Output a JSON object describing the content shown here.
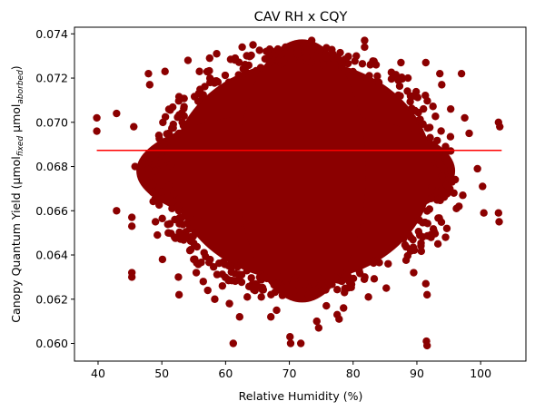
{
  "chart_data": {
    "type": "scatter",
    "title": "CAV RH x CQY",
    "xlabel": "Relative Humidity (%)",
    "ylabel": {
      "base": "Canopy Quantum Yield (μmol",
      "sub1": "fixed",
      "mid": " μmol",
      "sub2": "aborbed",
      "end": ")"
    },
    "xlim": [
      36.3,
      107.1
    ],
    "ylim": [
      0.0592,
      0.0743
    ],
    "xticks": [
      40,
      50,
      60,
      70,
      80,
      90,
      100
    ],
    "yticks": [
      0.06,
      0.062,
      0.064,
      0.066,
      0.068,
      0.07,
      0.072,
      0.074
    ],
    "ytick_labels": [
      "0.060",
      "0.062",
      "0.064",
      "0.066",
      "0.068",
      "0.070",
      "0.072",
      "0.074"
    ],
    "grid": false,
    "legend": "none",
    "series": [
      {
        "kind": "points",
        "color": "#8b0000",
        "points": [
          [
            39.8,
            0.0702
          ],
          [
            39.8,
            0.0696
          ],
          [
            42.9,
            0.0704
          ],
          [
            42.9,
            0.066
          ],
          [
            45.3,
            0.0632
          ],
          [
            45.3,
            0.063
          ],
          [
            45.3,
            0.0657
          ],
          [
            45.3,
            0.0653
          ],
          [
            45.6,
            0.0698
          ],
          [
            45.8,
            0.068
          ],
          [
            47.9,
            0.0722
          ],
          [
            48.1,
            0.0717
          ],
          [
            48.4,
            0.0676
          ],
          [
            49.0,
            0.0655
          ],
          [
            49.3,
            0.0649
          ],
          [
            50.1,
            0.0638
          ],
          [
            50.5,
            0.0723
          ],
          [
            51.6,
            0.0661
          ],
          [
            52.0,
            0.0648
          ],
          [
            52.6,
            0.063
          ],
          [
            52.7,
            0.0622
          ],
          [
            53.2,
            0.07
          ],
          [
            54.1,
            0.0728
          ],
          [
            54.4,
            0.0642
          ],
          [
            55.0,
            0.0638
          ],
          [
            55.4,
            0.0632
          ],
          [
            55.9,
            0.0723
          ],
          [
            56.5,
            0.0628
          ],
          [
            57.2,
            0.0624
          ],
          [
            57.5,
            0.0729
          ],
          [
            58.3,
            0.062
          ],
          [
            58.6,
            0.0731
          ],
          [
            59.5,
            0.0626
          ],
          [
            60.6,
            0.0618
          ],
          [
            61.2,
            0.06
          ],
          [
            61.5,
            0.0729
          ],
          [
            62.2,
            0.0612
          ],
          [
            62.6,
            0.0734
          ],
          [
            63.4,
            0.0621
          ],
          [
            64.3,
            0.0735
          ],
          [
            65.6,
            0.0621
          ],
          [
            66.5,
            0.0732
          ],
          [
            67.1,
            0.0612
          ],
          [
            68.0,
            0.0615
          ],
          [
            69.4,
            0.0734
          ],
          [
            70.1,
            0.0603
          ],
          [
            70.2,
            0.06
          ],
          [
            71.2,
            0.0731
          ],
          [
            71.8,
            0.06
          ],
          [
            73.5,
            0.0737
          ],
          [
            74.3,
            0.061
          ],
          [
            74.6,
            0.0607
          ],
          [
            75.8,
            0.0617
          ],
          [
            76.8,
            0.0731
          ],
          [
            77.5,
            0.0613
          ],
          [
            77.8,
            0.0611
          ],
          [
            78.5,
            0.0616
          ],
          [
            80.5,
            0.073
          ],
          [
            81.8,
            0.0737
          ],
          [
            81.8,
            0.0734
          ],
          [
            82.4,
            0.0621
          ],
          [
            83.6,
            0.0726
          ],
          [
            85.2,
            0.0625
          ],
          [
            87.5,
            0.0727
          ],
          [
            88.6,
            0.072
          ],
          [
            89.5,
            0.0632
          ],
          [
            91.4,
            0.0727
          ],
          [
            91.5,
            0.0601
          ],
          [
            91.6,
            0.0599
          ],
          [
            91.4,
            0.0627
          ],
          [
            91.6,
            0.0622
          ],
          [
            92.7,
            0.069
          ],
          [
            93.3,
            0.0645
          ],
          [
            93.6,
            0.0722
          ],
          [
            93.9,
            0.0717
          ],
          [
            94.5,
            0.0648
          ],
          [
            94.7,
            0.0652
          ],
          [
            95.3,
            0.0706
          ],
          [
            95.5,
            0.0673
          ],
          [
            95.8,
            0.0668
          ],
          [
            96.2,
            0.0661
          ],
          [
            96.6,
            0.0662
          ],
          [
            97.0,
            0.0722
          ],
          [
            97.2,
            0.0667
          ],
          [
            97.5,
            0.0702
          ],
          [
            98.2,
            0.0695
          ],
          [
            99.5,
            0.0679
          ],
          [
            100.3,
            0.0671
          ],
          [
            100.5,
            0.0659
          ],
          [
            102.8,
            0.07
          ],
          [
            103.0,
            0.0698
          ],
          [
            102.8,
            0.0659
          ],
          [
            102.9,
            0.0655
          ]
        ]
      },
      {
        "kind": "line",
        "color": "#ff0000",
        "x": [
          39.8,
          103.3
        ],
        "y": [
          0.06873,
          0.06873
        ]
      }
    ]
  }
}
